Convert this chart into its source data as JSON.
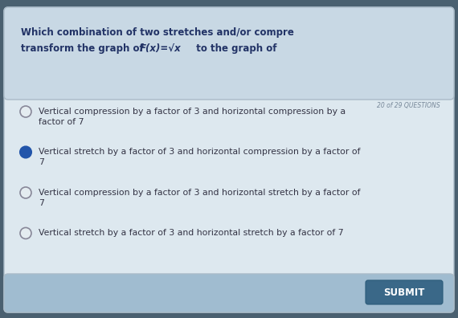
{
  "bg_outer": "#4a6070",
  "bg_card": "#e8eef2",
  "bg_header": "#c8d8e4",
  "bg_answers": "#e4ecf0",
  "bg_footer": "#a0bcd0",
  "submit_bg": "#3a6888",
  "submit_text": "SUBMIT",
  "question_counter": "20 of 29 QUESTIONS",
  "header_line1": "Which combination of two stretches and/or compre",
  "header_line2": "transform the graph of",
  "formula": "F(x)=√x",
  "header_line3": "to the graph of",
  "options": [
    [
      "Vertical compression by a factor of 3 and horizontal compression by a",
      "factor of 7"
    ],
    [
      "Vertical stretch by a factor of 3 and horizontal compression by a factor of",
      "7"
    ],
    [
      "Vertical compression by a factor of 3 and horizontal stretch by a factor of",
      "7"
    ],
    [
      "Vertical stretch by a factor of 3 and horizontal stretch by a factor of 7",
      ""
    ]
  ],
  "selected": 1,
  "radio_selected_color": "#2255aa",
  "radio_unselected_face": "#e4ecf0",
  "radio_unselected_edge": "#888899",
  "title_color": "#223366",
  "option_text_color": "#333344",
  "counter_color": "#778899"
}
